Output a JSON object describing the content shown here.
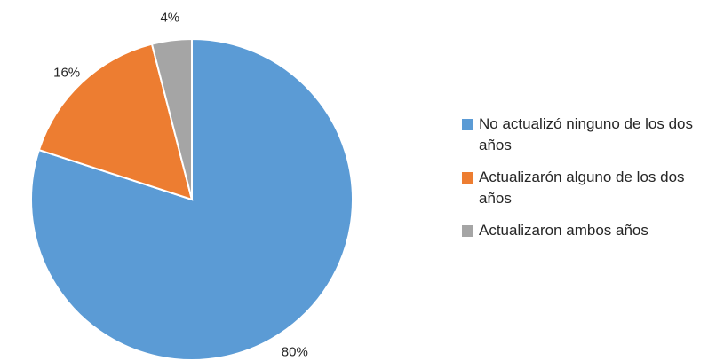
{
  "chart_data": {
    "type": "pie",
    "categories": [
      "No actualizó ninguno de los dos años",
      "Actualizarón alguno de los dos años",
      "Actualizaron ambos años"
    ],
    "values": [
      80,
      16,
      4
    ],
    "data_labels": [
      "80%",
      "16%",
      "4%"
    ],
    "colors": [
      "#5b9bd5",
      "#ed7d31",
      "#a5a5a5"
    ],
    "start_angle_deg": 0,
    "direction": "clockwise",
    "legend_position": "right"
  }
}
